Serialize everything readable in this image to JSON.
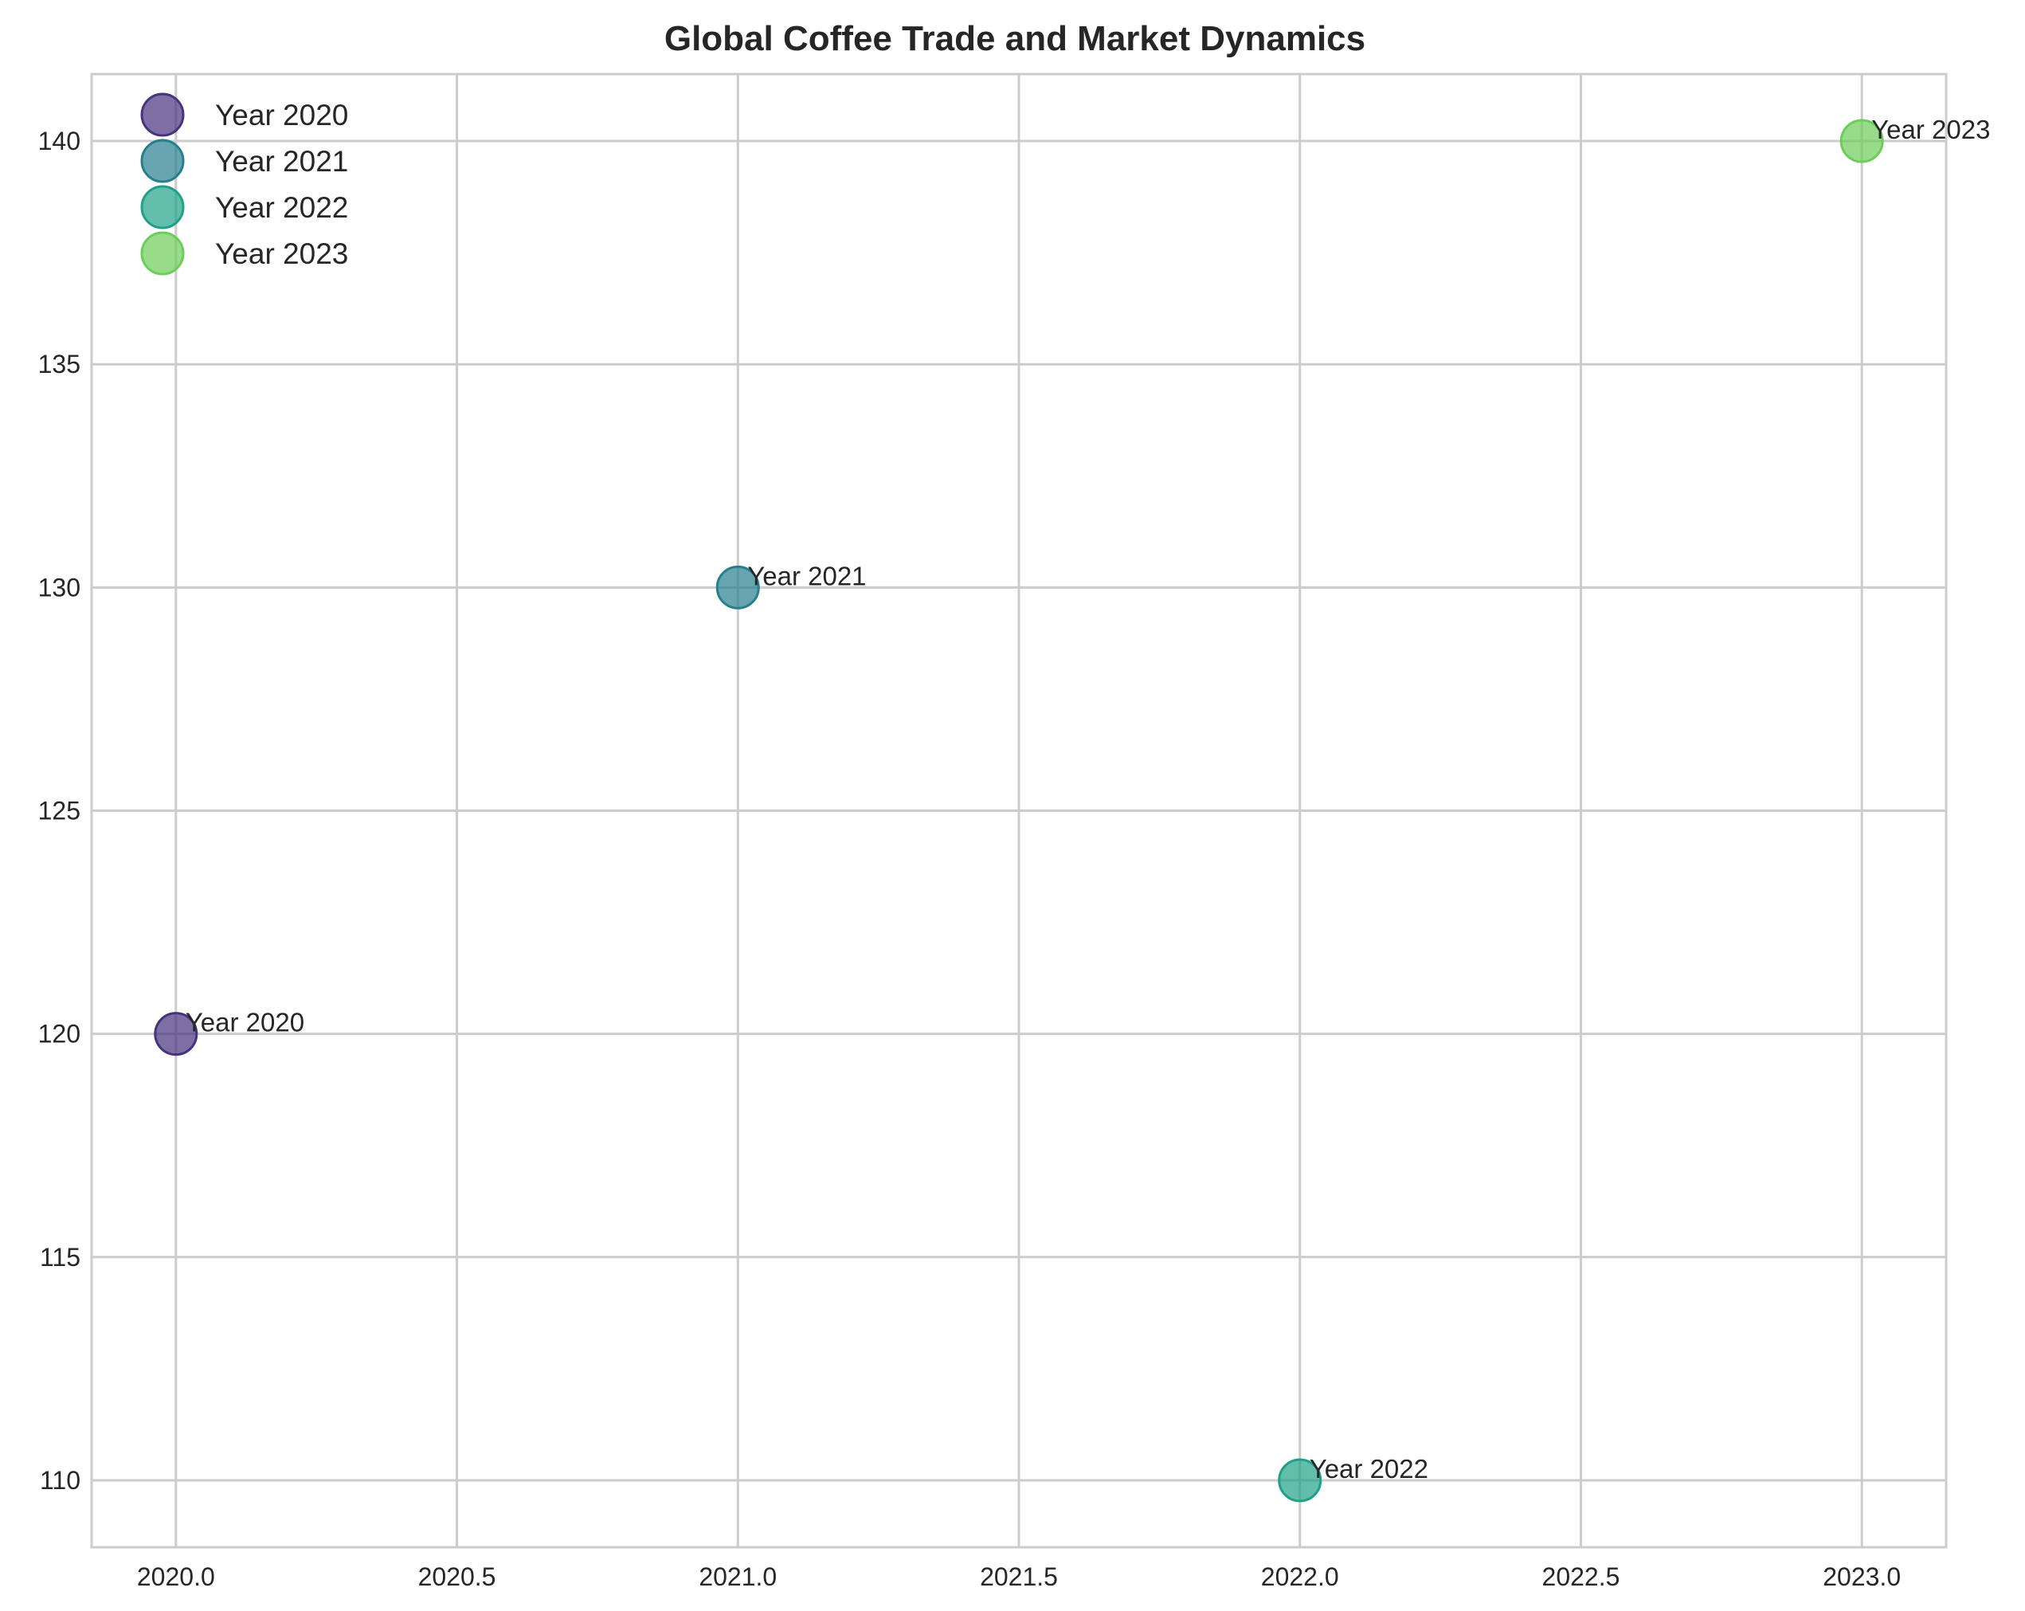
{
  "chart_data": {
    "type": "scatter",
    "title": "Global Coffee Trade and Market Dynamics",
    "xlabel": "",
    "ylabel": "",
    "xlim": [
      2019.85,
      2023.15
    ],
    "ylim": [
      108.5,
      141.5
    ],
    "x_ticks": [
      2020.0,
      2020.5,
      2021.0,
      2021.5,
      2022.0,
      2022.5,
      2023.0
    ],
    "x_tick_labels": [
      "2020.0",
      "2020.5",
      "2021.0",
      "2021.5",
      "2022.0",
      "2022.5",
      "2023.0"
    ],
    "y_ticks": [
      110,
      115,
      120,
      125,
      130,
      135,
      140
    ],
    "y_tick_labels": [
      "110",
      "115",
      "120",
      "125",
      "130",
      "135",
      "140"
    ],
    "grid": true,
    "legend_position": "top-left",
    "series": [
      {
        "name": "Year 2020",
        "x": [
          2020
        ],
        "y": [
          120
        ],
        "color": "#46327e",
        "annotation": "Year 2020"
      },
      {
        "name": "Year 2021",
        "x": [
          2021
        ],
        "y": [
          130
        ],
        "color": "#277f8e",
        "annotation": "Year 2021"
      },
      {
        "name": "Year 2022",
        "x": [
          2022
        ],
        "y": [
          110
        ],
        "color": "#1fa187",
        "annotation": "Year 2022"
      },
      {
        "name": "Year 2023",
        "x": [
          2023
        ],
        "y": [
          140
        ],
        "color": "#6ccd5a",
        "annotation": "Year 2023"
      }
    ]
  }
}
